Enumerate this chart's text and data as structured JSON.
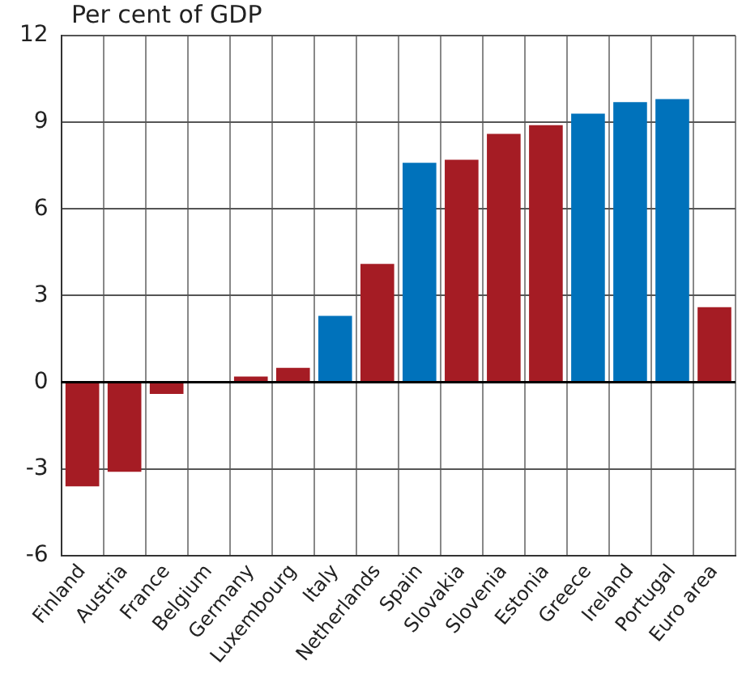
{
  "chart_data": {
    "type": "bar",
    "title": "Per cent of GDP",
    "categories": [
      "Finland",
      "Austria",
      "France",
      "Belgium",
      "Germany",
      "Luxembourg",
      "Italy",
      "Netherlands",
      "Spain",
      "Slovakia",
      "Slovenia",
      "Estonia",
      "Greece",
      "Ireland",
      "Portugal",
      "Euro area"
    ],
    "values": [
      -3.6,
      -3.1,
      -0.4,
      0,
      0.2,
      0.5,
      2.3,
      4.1,
      7.6,
      7.7,
      8.6,
      8.9,
      9.3,
      9.7,
      9.8,
      2.6
    ],
    "colors": [
      "#a51c24",
      "#a51c24",
      "#a51c24",
      "#a51c24",
      "#a51c24",
      "#a51c24",
      "#0072bb",
      "#a51c24",
      "#0072bb",
      "#a51c24",
      "#a51c24",
      "#a51c24",
      "#0072bb",
      "#0072bb",
      "#0072bb",
      "#a51c24"
    ],
    "ylim": [
      -6,
      12
    ],
    "yticks": [
      -6,
      -3,
      0,
      3,
      6,
      9,
      12
    ],
    "grid": true,
    "legend": false
  }
}
